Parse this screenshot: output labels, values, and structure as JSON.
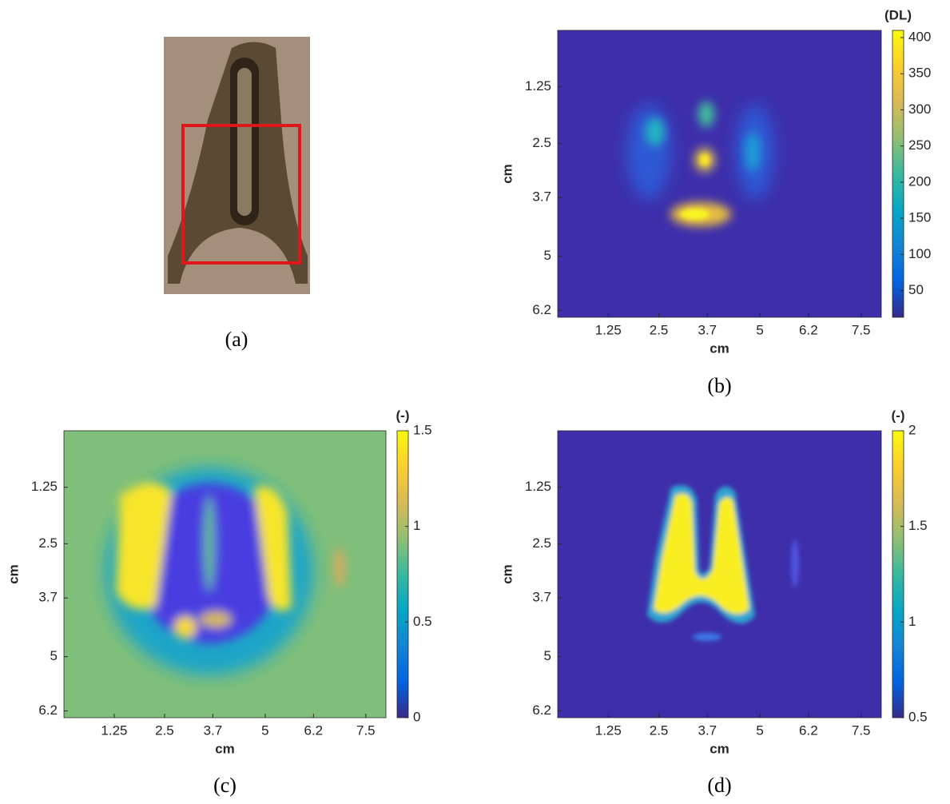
{
  "photo_caption": "(a)",
  "chart_data": [
    {
      "type": "heatmap",
      "caption": "(b)",
      "xlabel": "cm",
      "ylabel": "cm",
      "colorbar_label": "(DL)",
      "colormap": "parula",
      "xlim": [
        0,
        8
      ],
      "ylim": [
        0,
        6.35
      ],
      "xticks": [
        1.25,
        2.5,
        3.7,
        5,
        6.2,
        7.5
      ],
      "yticks": [
        1.25,
        2.5,
        3.7,
        5,
        6.2
      ],
      "clim": [
        13,
        410
      ],
      "cticks": [
        50,
        100,
        150,
        200,
        250,
        300,
        350,
        400
      ]
    },
    {
      "type": "heatmap",
      "caption": "(c)",
      "xlabel": "cm",
      "ylabel": "cm",
      "colorbar_label": "(-)",
      "colormap": "parula",
      "xlim": [
        0,
        8
      ],
      "ylim": [
        0,
        6.35
      ],
      "xticks": [
        1.25,
        2.5,
        3.7,
        5,
        6.2,
        7.5
      ],
      "yticks": [
        1.25,
        2.5,
        3.7,
        5,
        6.2
      ],
      "clim": [
        0,
        1.5
      ],
      "cticks": [
        0,
        0.5,
        1,
        1.5
      ]
    },
    {
      "type": "heatmap",
      "caption": "(d)",
      "xlabel": "cm",
      "ylabel": "cm",
      "colorbar_label": "(-)",
      "colormap": "parula",
      "xlim": [
        0,
        8
      ],
      "ylim": [
        0,
        6.35
      ],
      "xticks": [
        1.25,
        2.5,
        3.7,
        5,
        6.2,
        7.5
      ],
      "yticks": [
        1.25,
        2.5,
        3.7,
        5,
        6.2
      ],
      "clim": [
        0.5,
        2
      ],
      "cticks": [
        0.5,
        1,
        1.5,
        2
      ]
    }
  ]
}
